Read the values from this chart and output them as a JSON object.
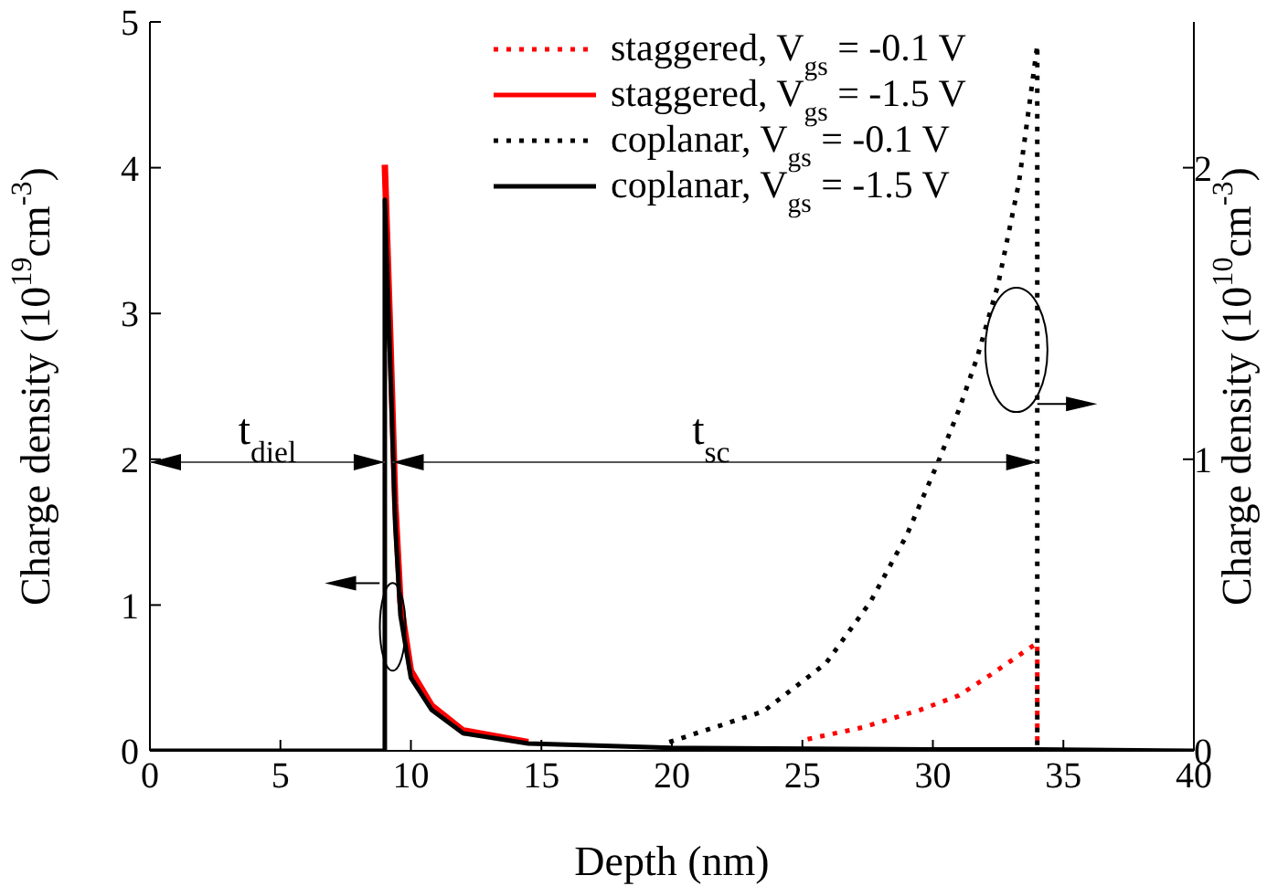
{
  "chart_data": {
    "type": "line",
    "xlabel": "Depth (nm)",
    "ylabel": "Charge density (10$^{19}$cm$^{-3}$)",
    "y2label": "Charge density (10$^{10}$cm$^{-3}$)",
    "xlim": [
      0,
      40
    ],
    "xticks": [
      0,
      5,
      10,
      15,
      20,
      25,
      30,
      35,
      40
    ],
    "ylim": [
      0,
      5
    ],
    "yticks": [
      0,
      1,
      2,
      3,
      4,
      5
    ],
    "y2lim": [
      0,
      2.5
    ],
    "y2ticks": [
      0,
      1,
      2
    ],
    "legend": "top",
    "marker": "none",
    "series": [
      {
        "name": "staggered, V$_{gs}$ = -0.1 V",
        "color": "#ff0000",
        "axis": "y2",
        "line_style": "dotted",
        "x": [
          25.2,
          27.3,
          29.5,
          31,
          32.2,
          33.5,
          34,
          34
        ],
        "values": [
          0.04,
          0.08,
          0.14,
          0.19,
          0.26,
          0.34,
          0.37,
          0
        ]
      },
      {
        "name": "staggered, V$_{gs}$ = -1.5 V",
        "color": "#ff0000",
        "line_style": "solid",
        "x": [
          9,
          9.2,
          9.4,
          9.6,
          10,
          10.8,
          12,
          14.5
        ],
        "values": [
          4.02,
          2.9,
          1.7,
          1.02,
          0.55,
          0.31,
          0.14,
          0.06
        ]
      },
      {
        "name": "coplanar, V$_{gs}$ = -0.1 V",
        "color": "#000000",
        "axis": "y2",
        "line_style": "dotted",
        "x": [
          19.9,
          23.5,
          25.9,
          27.6,
          29,
          30.2,
          31,
          31.7,
          32.5,
          33.3,
          34,
          34
        ],
        "values": [
          0.03,
          0.135,
          0.3,
          0.51,
          0.74,
          0.99,
          1.17,
          1.35,
          1.6,
          1.95,
          2.42,
          0
        ]
      },
      {
        "name": "coplanar, V$_{gs}$ = -1.5 V",
        "color": "#000000",
        "line_style": "solid",
        "x": [
          0,
          9,
          9,
          9.2,
          9.4,
          9.6,
          10,
          10.8,
          12,
          14.5,
          20,
          30,
          34,
          40
        ],
        "values": [
          0,
          0,
          3.78,
          2.7,
          1.55,
          0.93,
          0.5,
          0.28,
          0.12,
          0.05,
          0.02,
          0.01,
          0.01,
          0
        ]
      }
    ],
    "annotations": [
      "t$_{diel}$",
      "t$_{sc}$"
    ]
  }
}
